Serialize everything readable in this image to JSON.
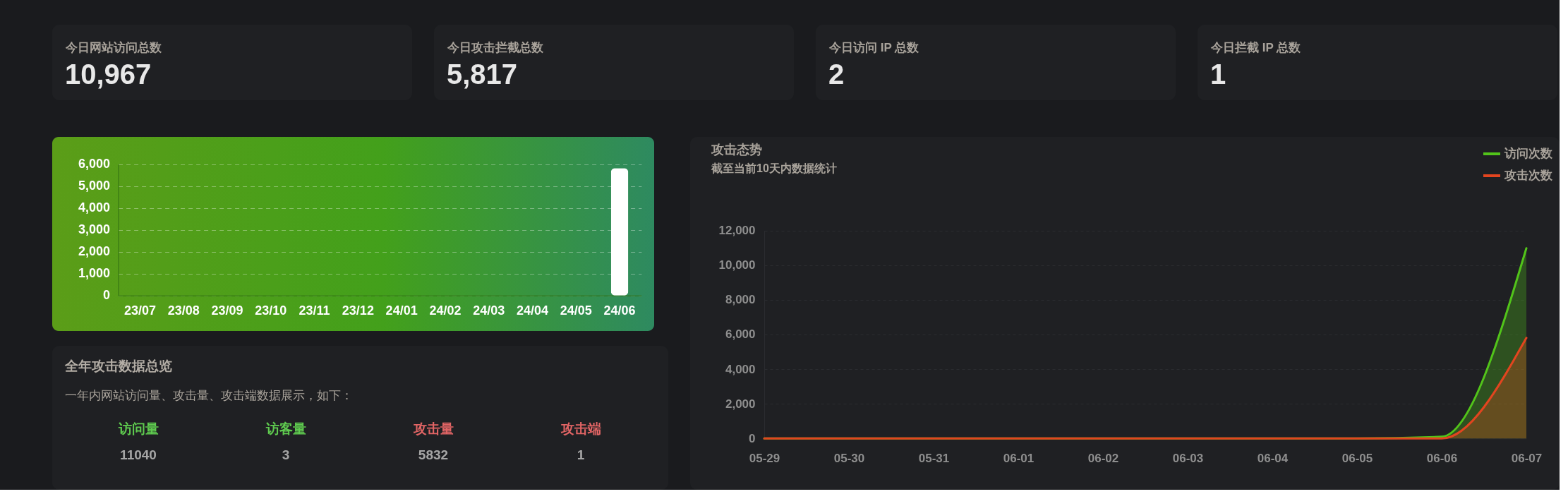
{
  "chart_data": [
    {
      "type": "other",
      "categories": [
        "今日网站访问总数",
        "今日攻击拦截总数",
        "今日访问 IP 总数",
        "今日拦截 IP 总数"
      ],
      "annotations": [
        "10,967",
        "5,817",
        "2",
        "1"
      ]
    },
    {
      "type": "bar",
      "categories": [
        "23/07",
        "23/08",
        "23/09",
        "23/10",
        "23/11",
        "23/12",
        "24/01",
        "24/02",
        "24/03",
        "24/04",
        "24/05",
        "24/06"
      ],
      "values": [
        0,
        0,
        0,
        0,
        0,
        0,
        0,
        0,
        0,
        0,
        0,
        5820
      ],
      "color": "#ffffff",
      "ylim": [
        0,
        6000
      ],
      "yticks": [
        0,
        {
          "value": 1000,
          "label": "1,000"
        },
        {
          "value": 2000,
          "label": "2,000"
        },
        {
          "value": 3000,
          "label": "3,000"
        },
        {
          "value": 4000,
          "label": "4,000"
        },
        {
          "value": 5000,
          "label": "5,000"
        },
        {
          "value": 6000,
          "label": "6,000"
        }
      ],
      "grid": "y"
    },
    {
      "type": "other",
      "title": "全年攻击数据总览",
      "subtitle": "一年内网站访问量、攻击量、攻击端数据展示，如下：",
      "categories": [
        "访问量",
        "访客量",
        "攻击量",
        "攻击端"
      ],
      "colors": [
        "#5fcb4f",
        "#5fcb4f",
        "#e26565",
        "#e26565"
      ],
      "annotations": [
        "11040",
        "3",
        "5832",
        "1"
      ]
    },
    {
      "type": "area",
      "title": "攻击态势",
      "subtitle": "截至当前10天内数据统计",
      "categories": [
        "05-29",
        "05-30",
        "05-31",
        "06-01",
        "06-02",
        "06-03",
        "06-04",
        "06-05",
        "06-06",
        "06-07"
      ],
      "series": [
        {
          "name": "访问次数",
          "color": "#52c41a",
          "values": [
            0,
            0,
            0,
            0,
            0,
            0,
            0,
            0,
            100,
            10970
          ]
        },
        {
          "name": "攻击次数",
          "color": "#e2451f",
          "values": [
            0,
            0,
            0,
            0,
            0,
            0,
            0,
            0,
            0,
            5800
          ]
        }
      ],
      "ylim": [
        0,
        12000
      ],
      "yticks": [
        0,
        {
          "value": 2000,
          "label": "2,000"
        },
        {
          "value": 4000,
          "label": "4,000"
        },
        {
          "value": 6000,
          "label": "6,000"
        },
        {
          "value": 8000,
          "label": "8,000"
        },
        {
          "value": 10000,
          "label": "10,000"
        },
        {
          "value": 12000,
          "label": "12,000"
        }
      ],
      "grid": "y",
      "legend": "top right"
    }
  ]
}
